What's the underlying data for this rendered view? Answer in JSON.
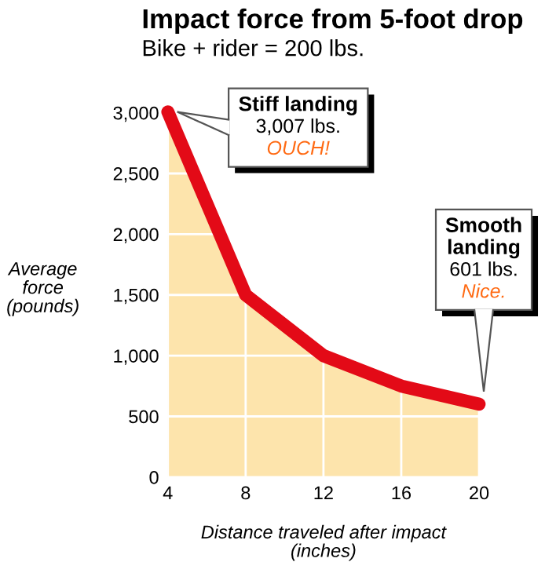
{
  "chart_data": {
    "type": "area",
    "title": "Impact force from 5-foot drop",
    "subtitle": "Bike + rider = 200 lbs.",
    "xlabel": "Distance traveled after impact\n(inches)",
    "ylabel": "Average\nforce\n(pounds)",
    "x": [
      4,
      8,
      12,
      16,
      20
    ],
    "series": [
      {
        "color": "#e30a17",
        "values": [
          3007,
          1500,
          1000,
          750,
          601
        ]
      }
    ],
    "xlim": [
      4,
      20
    ],
    "xticks": [
      4,
      8,
      12,
      16,
      20
    ],
    "ylim": [
      0,
      3100
    ],
    "yticks": [
      0,
      500,
      {
        "value": 1000,
        "label": "1,000"
      },
      {
        "value": 1500,
        "label": "1,500"
      },
      {
        "value": 2000,
        "label": "2,000"
      },
      {
        "value": 2500,
        "label": "2,500"
      },
      {
        "value": 3000,
        "label": "3,000"
      }
    ],
    "grid": true,
    "annotations": [
      {
        "text": "Stiff landing\n3,007 lbs.\nOUCH!",
        "x": 4,
        "y": 3007
      },
      {
        "text": "Smooth\nlanding\n601 lbs.\nNice.",
        "x": 20,
        "y": 601
      }
    ]
  }
}
